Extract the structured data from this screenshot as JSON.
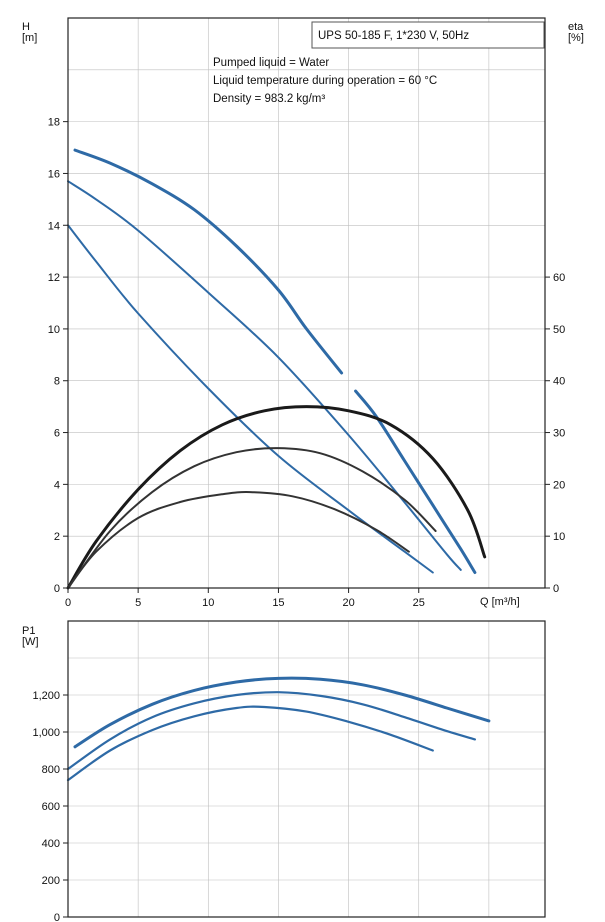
{
  "chart_data": [
    {
      "type": "line",
      "title": "UPS 50-185 F, 1*230 V, 50Hz",
      "annotations": [
        "Pumped liquid = Water",
        "Liquid temperature during operation = 60 °C",
        "Density = 983.2 kg/m³"
      ],
      "xlabel": "Q [m³/h]",
      "ylabel": "H\n[m]",
      "y2label": "eta\n[%]",
      "xlim": [
        0,
        34
      ],
      "ylim": [
        0,
        22
      ],
      "y2lim": [
        0,
        110
      ],
      "x_ticks": [
        0,
        5,
        10,
        15,
        20,
        25
      ],
      "x_tick_labels": [
        "0",
        "5",
        "10",
        "15",
        "20",
        "25"
      ],
      "y_ticks": [
        0,
        2,
        4,
        6,
        8,
        10,
        12,
        14,
        16,
        18
      ],
      "y_tick_labels": [
        "0",
        "2",
        "4",
        "6",
        "8",
        "10",
        "12",
        "14",
        "16",
        "18"
      ],
      "y2_ticks": [
        0,
        10,
        20,
        30,
        40,
        50,
        60
      ],
      "y2_tick_labels": [
        "0",
        "10",
        "20",
        "30",
        "40",
        "50",
        "60"
      ],
      "grid": true,
      "series": [
        {
          "kind": "head",
          "color": "#2e6aa6",
          "points": [
            [
              0.5,
              16.9
            ],
            [
              3,
              16.4
            ],
            [
              6,
              15.6
            ],
            [
              9,
              14.6
            ],
            [
              12,
              13.2
            ],
            [
              15,
              11.5
            ],
            [
              17,
              10.0
            ],
            [
              19.5,
              8.3
            ]
          ]
        },
        {
          "kind": "head-ext",
          "color": "#2e6aa6",
          "points": [
            [
              20.5,
              7.6
            ],
            [
              22,
              6.6
            ],
            [
              24,
              4.9
            ],
            [
              26,
              3.2
            ],
            [
              28,
              1.5
            ],
            [
              29,
              0.6
            ]
          ]
        },
        {
          "kind": "head",
          "color": "#2e6aa6",
          "points": [
            [
              0,
              15.7
            ],
            [
              2,
              15.0
            ],
            [
              5,
              13.8
            ],
            [
              10,
              11.4
            ],
            [
              15,
              8.9
            ],
            [
              20,
              5.9
            ],
            [
              24,
              3.3
            ],
            [
              27,
              1.3
            ],
            [
              28,
              0.7
            ]
          ]
        },
        {
          "kind": "head",
          "color": "#2e6aa6",
          "points": [
            [
              0,
              14.0
            ],
            [
              2,
              12.6
            ],
            [
              5,
              10.6
            ],
            [
              10,
              7.7
            ],
            [
              15,
              5.1
            ],
            [
              20,
              3.0
            ],
            [
              24,
              1.4
            ],
            [
              26,
              0.6
            ]
          ]
        },
        {
          "kind": "eta",
          "color": "#1a1a1a",
          "points": [
            [
              0,
              0
            ],
            [
              2,
              9
            ],
            [
              5,
              19
            ],
            [
              8,
              26.5
            ],
            [
              11,
              31.5
            ],
            [
              14,
              34.2
            ],
            [
              17,
              35
            ],
            [
              20,
              34.2
            ],
            [
              23,
              31.5
            ],
            [
              26,
              25
            ],
            [
              28.5,
              15
            ],
            [
              29.7,
              6
            ]
          ]
        },
        {
          "kind": "eta",
          "color": "#333333",
          "points": [
            [
              0,
              0
            ],
            [
              3,
              11
            ],
            [
              6,
              18.5
            ],
            [
              9,
              23.5
            ],
            [
              12,
              26.2
            ],
            [
              15,
              27
            ],
            [
              18,
              26
            ],
            [
              21,
              22.5
            ],
            [
              24,
              17
            ],
            [
              26.2,
              11
            ]
          ]
        },
        {
          "kind": "eta",
          "color": "#333333",
          "points": [
            [
              0,
              0
            ],
            [
              2,
              7
            ],
            [
              5,
              13.5
            ],
            [
              8,
              16.6
            ],
            [
              11,
              18.1
            ],
            [
              13,
              18.5
            ],
            [
              16,
              17.7
            ],
            [
              19,
              15.2
            ],
            [
              22,
              11.2
            ],
            [
              24.3,
              7
            ]
          ]
        }
      ]
    },
    {
      "type": "line",
      "ylabel": "P1\n[W]",
      "xlim": [
        0,
        34
      ],
      "ylim": [
        0,
        1600
      ],
      "y_ticks": [
        0,
        200,
        400,
        600,
        800,
        1000,
        1200
      ],
      "y_tick_labels": [
        "0",
        "200",
        "400",
        "600",
        "800",
        "1,000",
        "1,200"
      ],
      "grid": true,
      "series": [
        {
          "kind": "power",
          "color": "#2e6aa6",
          "points": [
            [
              0.5,
              920
            ],
            [
              3,
              1040
            ],
            [
              6,
              1150
            ],
            [
              9,
              1225
            ],
            [
              12,
              1270
            ],
            [
              15,
              1290
            ],
            [
              18,
              1285
            ],
            [
              21,
              1255
            ],
            [
              24,
              1200
            ],
            [
              27,
              1130
            ],
            [
              30,
              1060
            ]
          ]
        },
        {
          "kind": "power",
          "color": "#2e6aa6",
          "points": [
            [
              0,
              800
            ],
            [
              3,
              960
            ],
            [
              6,
              1080
            ],
            [
              9,
              1155
            ],
            [
              12,
              1200
            ],
            [
              15,
              1215
            ],
            [
              18,
              1195
            ],
            [
              21,
              1150
            ],
            [
              24,
              1080
            ],
            [
              27,
              1005
            ],
            [
              29,
              960
            ]
          ]
        },
        {
          "kind": "power",
          "color": "#2e6aa6",
          "points": [
            [
              0,
              740
            ],
            [
              3,
              900
            ],
            [
              6,
              1010
            ],
            [
              9,
              1085
            ],
            [
              12,
              1130
            ],
            [
              14,
              1135
            ],
            [
              17,
              1110
            ],
            [
              20,
              1055
            ],
            [
              23,
              985
            ],
            [
              26,
              900
            ]
          ]
        }
      ]
    }
  ]
}
